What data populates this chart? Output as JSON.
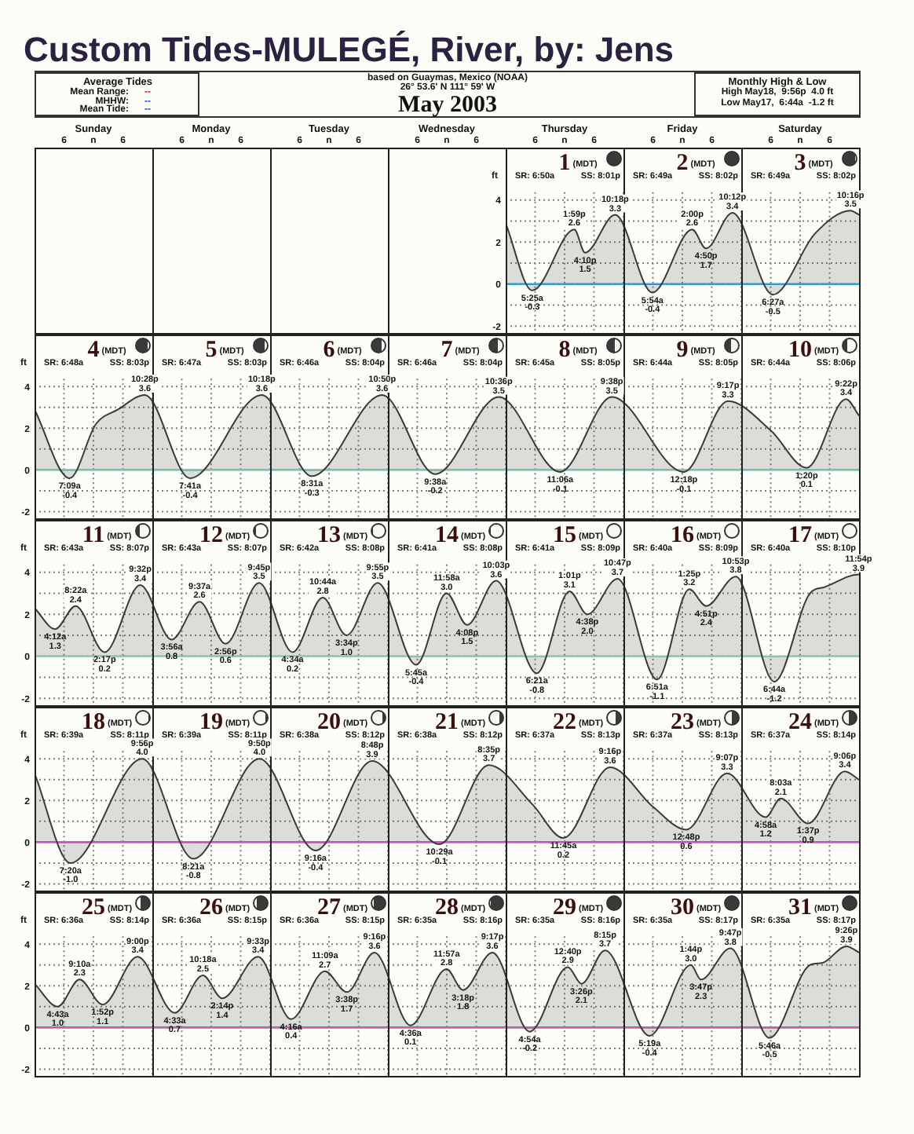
{
  "chart_data": [
    {
      "type": "other",
      "title": "Custom Tides-MULEGÉ, River, by: Jens",
      "subtitle": "May 2003",
      "annotations": [
        "based on Guaymas, Mexico (NOAA)",
        "26° 53.6' N 111° 59' W",
        "Average Tides",
        "Mean Range:",
        "--",
        "MHHW:",
        "--",
        "Mean Tide:",
        "--",
        "Monthly High & Low",
        "High May18,  9:56p  4.0 ft",
        "Low May17,  6:44a  -1.2 ft",
        "Sunday",
        "Monday",
        "Tuesday",
        "Wednesday",
        "Thursday",
        "Friday",
        "Saturday",
        "6",
        "n",
        "6",
        "6",
        "n",
        "6",
        "6",
        "n",
        "6",
        "6",
        "n",
        "6",
        "6",
        "n",
        "6",
        "6",
        "n",
        "6",
        "6",
        "n",
        "6"
      ]
    },
    {
      "type": "area",
      "ylabel": "ft",
      "grid": true,
      "xlim": [
        "2003-05-01T00:00",
        "2003-05-04T00:00"
      ],
      "ylim": [
        -2.4,
        6.5
      ],
      "yticks": [
        -2,
        {
          "value": -1,
          "label": null
        },
        0,
        {
          "value": 1,
          "label": null
        },
        2,
        {
          "value": 3,
          "label": null
        },
        4
      ],
      "xticks": [
        {
          "value": "2003-05-01T06:00",
          "label": null
        },
        {
          "value": "2003-05-01T12:00",
          "label": "1"
        },
        {
          "value": "2003-05-01T18:00",
          "label": null
        },
        {
          "value": "2003-05-02T00:00",
          "label": null
        },
        {
          "value": "2003-05-02T06:00",
          "label": null
        },
        {
          "value": "2003-05-02T12:00",
          "label": "2"
        },
        {
          "value": "2003-05-02T18:00",
          "label": null
        },
        {
          "value": "2003-05-03T00:00",
          "label": null
        },
        {
          "value": "2003-05-03T06:00",
          "label": null
        },
        {
          "value": "2003-05-03T12:00",
          "label": "3"
        },
        {
          "value": "2003-05-03T18:00",
          "label": null
        }
      ],
      "x": [
        "2003-05-01T00:00",
        "2003-05-01T05:25",
        "2003-05-01T13:59",
        "2003-05-01T16:10",
        "2003-05-01T22:18",
        "2003-05-02T05:54",
        "2003-05-02T14:00",
        "2003-05-02T16:50",
        "2003-05-02T22:12",
        "2003-05-03T06:27",
        "2003-05-03T15:00",
        "2003-05-03T22:16",
        "2003-05-04T00:00"
      ],
      "series": [
        {
          "color": "#3a3a3a",
          "values": [
            2.9,
            -0.3,
            2.6,
            1.5,
            3.3,
            -0.4,
            2.6,
            1.7,
            3.4,
            -0.5,
            2.4,
            3.5,
            3.3
          ],
          "value_labels": [
            null,
            "5:25a\n-0.3",
            "1:59p\n2.6",
            "4:10p\n1.5",
            "10:18p\n3.3",
            "5:54a\n-0.4",
            "2:00p\n2.6",
            "4:50p\n1.7",
            "10:12p\n3.4",
            "6:27a\n-0.5",
            null,
            "10:16p\n3.5",
            null
          ]
        }
      ],
      "ref_lines": [
        {
          "axis": "y",
          "value": 0,
          "color": "#3ba4d9"
        }
      ],
      "annotations": [
        "(MDT)",
        "SR: 6:50a",
        "SS: 8:01p",
        "(MDT)",
        "SR: 6:49a",
        "SS: 8:02p",
        "(MDT)",
        "SR: 6:49a",
        "SS: 8:02p"
      ]
    },
    {
      "type": "area",
      "ylabel": "ft",
      "grid": true,
      "xlim": [
        "2003-05-04T00:00",
        "2003-05-11T00:00"
      ],
      "ylim": [
        -2.4,
        6.5
      ],
      "yticks": [
        -2,
        {
          "value": -1,
          "label": null
        },
        0,
        {
          "value": 1,
          "label": null
        },
        2,
        {
          "value": 3,
          "label": null
        },
        4
      ],
      "xticks": [
        {
          "value": "2003-05-04T06:00",
          "label": null
        },
        {
          "value": "2003-05-04T12:00",
          "label": "4"
        },
        {
          "value": "2003-05-04T18:00",
          "label": null
        },
        {
          "value": "2003-05-05T00:00",
          "label": null
        },
        {
          "value": "2003-05-05T06:00",
          "label": null
        },
        {
          "value": "2003-05-05T12:00",
          "label": "5"
        },
        {
          "value": "2003-05-05T18:00",
          "label": null
        },
        {
          "value": "2003-05-06T00:00",
          "label": null
        },
        {
          "value": "2003-05-06T06:00",
          "label": null
        },
        {
          "value": "2003-05-06T12:00",
          "label": "6"
        },
        {
          "value": "2003-05-06T18:00",
          "label": null
        },
        {
          "value": "2003-05-07T00:00",
          "label": null
        },
        {
          "value": "2003-05-07T06:00",
          "label": null
        },
        {
          "value": "2003-05-07T12:00",
          "label": "7"
        },
        {
          "value": "2003-05-07T18:00",
          "label": null
        },
        {
          "value": "2003-05-08T00:00",
          "label": null
        },
        {
          "value": "2003-05-08T06:00",
          "label": null
        },
        {
          "value": "2003-05-08T12:00",
          "label": "8"
        },
        {
          "value": "2003-05-08T18:00",
          "label": null
        },
        {
          "value": "2003-05-09T00:00",
          "label": null
        },
        {
          "value": "2003-05-09T06:00",
          "label": null
        },
        {
          "value": "2003-05-09T12:00",
          "label": "9"
        },
        {
          "value": "2003-05-09T18:00",
          "label": null
        },
        {
          "value": "2003-05-10T00:00",
          "label": null
        },
        {
          "value": "2003-05-10T06:00",
          "label": null
        },
        {
          "value": "2003-05-10T12:00",
          "label": "10"
        },
        {
          "value": "2003-05-10T18:00",
          "label": null
        }
      ],
      "x": [
        "2003-05-04T00:00",
        "2003-05-04T07:09",
        "2003-05-04T12:30",
        "2003-05-04T17:00",
        "2003-05-04T22:28",
        "2003-05-05T07:41",
        "2003-05-05T22:18",
        "2003-05-06T08:31",
        "2003-05-06T22:50",
        "2003-05-07T09:38",
        "2003-05-07T22:36",
        "2003-05-08T11:06",
        "2003-05-08T21:38",
        "2003-05-09T12:18",
        "2003-05-09T21:17",
        "2003-05-10T06:00",
        "2003-05-10T13:20",
        "2003-05-10T21:22",
        "2003-05-11T00:00"
      ],
      "series": [
        {
          "color": "#3a3a3a",
          "values": [
            2.9,
            -0.4,
            2.2,
            2.9,
            3.6,
            -0.4,
            3.6,
            -0.3,
            3.6,
            -0.2,
            3.5,
            -0.1,
            3.5,
            -0.1,
            3.3,
            1.9,
            0.1,
            3.4,
            2.6
          ],
          "value_labels": [
            null,
            "7:09a\n-0.4",
            null,
            null,
            "10:28p\n3.6",
            "7:41a\n-0.4",
            "10:18p\n3.6",
            "8:31a\n-0.3",
            "10:50p\n3.6",
            "9:38a\n-0.2",
            "10:36p\n3.5",
            "11:06a\n-0.1",
            "9:38p\n3.5",
            "12:18p\n-0.1",
            "9:17p\n3.3",
            null,
            "1:20p\n0.1",
            "9:22p\n3.4",
            null
          ]
        }
      ],
      "ref_lines": [
        {
          "axis": "y",
          "value": 0,
          "color": "#7fcfc4"
        }
      ],
      "annotations": [
        "(MDT)",
        "SR: 6:48a",
        "SS: 8:03p",
        "(MDT)",
        "SR: 6:47a",
        "SS: 8:03p",
        "(MDT)",
        "SR: 6:46a",
        "SS: 8:04p",
        "(MDT)",
        "SR: 6:46a",
        "SS: 8:04p",
        "(MDT)",
        "SR: 6:45a",
        "SS: 8:05p",
        "(MDT)",
        "SR: 6:44a",
        "SS: 8:05p",
        "(MDT)",
        "SR: 6:44a",
        "SS: 8:06p"
      ]
    },
    {
      "type": "area",
      "ylabel": "ft",
      "grid": true,
      "xlim": [
        "2003-05-11T00:00",
        "2003-05-18T00:00"
      ],
      "ylim": [
        -2.4,
        6.5
      ],
      "yticks": [
        -2,
        {
          "value": -1,
          "label": null
        },
        0,
        {
          "value": 1,
          "label": null
        },
        2,
        {
          "value": 3,
          "label": null
        },
        4
      ],
      "xticks": [
        {
          "value": "2003-05-11T06:00",
          "label": null
        },
        {
          "value": "2003-05-11T12:00",
          "label": "11"
        },
        {
          "value": "2003-05-11T18:00",
          "label": null
        },
        {
          "value": "2003-05-12T00:00",
          "label": null
        },
        {
          "value": "2003-05-12T06:00",
          "label": null
        },
        {
          "value": "2003-05-12T12:00",
          "label": "12"
        },
        {
          "value": "2003-05-12T18:00",
          "label": null
        },
        {
          "value": "2003-05-13T00:00",
          "label": null
        },
        {
          "value": "2003-05-13T06:00",
          "label": null
        },
        {
          "value": "2003-05-13T12:00",
          "label": "13"
        },
        {
          "value": "2003-05-13T18:00",
          "label": null
        },
        {
          "value": "2003-05-14T00:00",
          "label": null
        },
        {
          "value": "2003-05-14T06:00",
          "label": null
        },
        {
          "value": "2003-05-14T12:00",
          "label": "14"
        },
        {
          "value": "2003-05-14T18:00",
          "label": null
        },
        {
          "value": "2003-05-15T00:00",
          "label": null
        },
        {
          "value": "2003-05-15T06:00",
          "label": null
        },
        {
          "value": "2003-05-15T12:00",
          "label": "15"
        },
        {
          "value": "2003-05-15T18:00",
          "label": null
        },
        {
          "value": "2003-05-16T00:00",
          "label": null
        },
        {
          "value": "2003-05-16T06:00",
          "label": null
        },
        {
          "value": "2003-05-16T12:00",
          "label": "16"
        },
        {
          "value": "2003-05-16T18:00",
          "label": null
        },
        {
          "value": "2003-05-17T00:00",
          "label": null
        },
        {
          "value": "2003-05-17T06:00",
          "label": null
        },
        {
          "value": "2003-05-17T12:00",
          "label": "17"
        },
        {
          "value": "2003-05-17T18:00",
          "label": null
        }
      ],
      "x": [
        "2003-05-11T00:00",
        "2003-05-11T04:12",
        "2003-05-11T08:22",
        "2003-05-11T14:17",
        "2003-05-11T21:32",
        "2003-05-12T03:56",
        "2003-05-12T09:37",
        "2003-05-12T14:56",
        "2003-05-12T21:45",
        "2003-05-13T04:34",
        "2003-05-13T10:44",
        "2003-05-13T15:34",
        "2003-05-13T21:55",
        "2003-05-14T05:45",
        "2003-05-14T11:58",
        "2003-05-14T16:08",
        "2003-05-14T22:03",
        "2003-05-15T06:21",
        "2003-05-15T13:01",
        "2003-05-15T16:38",
        "2003-05-15T22:47",
        "2003-05-16T06:51",
        "2003-05-16T13:25",
        "2003-05-16T16:51",
        "2003-05-16T22:53",
        "2003-05-17T06:44",
        "2003-05-17T14:00",
        "2003-05-17T17:00",
        "2003-05-17T23:54",
        "2003-05-18T00:00"
      ],
      "series": [
        {
          "color": "#3a3a3a",
          "values": [
            2.3,
            1.3,
            2.4,
            0.2,
            3.4,
            0.8,
            2.6,
            0.6,
            3.5,
            0.2,
            2.8,
            1.0,
            3.5,
            -0.4,
            3.0,
            1.5,
            3.6,
            -0.8,
            3.1,
            2.0,
            3.7,
            -1.1,
            3.2,
            2.4,
            3.8,
            -1.2,
            3.0,
            3.3,
            3.9,
            3.9
          ],
          "value_labels": [
            null,
            "4:12a\n1.3",
            "8:22a\n2.4",
            "2:17p\n0.2",
            "9:32p\n3.4",
            "3:56a\n0.8",
            "9:37a\n2.6",
            "2:56p\n0.6",
            "9:45p\n3.5",
            "4:34a\n0.2",
            "10:44a\n2.8",
            "3:34p\n1.0",
            "9:55p\n3.5",
            "5:45a\n-0.4",
            "11:58a\n3.0",
            "4:08p\n1.5",
            "10:03p\n3.6",
            "6:21a\n-0.8",
            "1:01p\n3.1",
            "4:38p\n2.0",
            "10:47p\n3.7",
            "6:51a\n-1.1",
            "1:25p\n3.2",
            "4:51p\n2.4",
            "10:53p\n3.8",
            "6:44a\n-1.2",
            null,
            null,
            "11:54p\n3.9",
            null
          ]
        }
      ],
      "ref_lines": [
        {
          "axis": "y",
          "value": 0,
          "color": "#9cd0bf"
        }
      ],
      "annotations": [
        "(MDT)",
        "SR: 6:43a",
        "SS: 8:07p",
        "(MDT)",
        "SR: 6:43a",
        "SS: 8:07p",
        "(MDT)",
        "SR: 6:42a",
        "SS: 8:08p",
        "(MDT)",
        "SR: 6:41a",
        "SS: 8:08p",
        "(MDT)",
        "SR: 6:41a",
        "SS: 8:09p",
        "(MDT)",
        "SR: 6:40a",
        "SS: 8:09p",
        "(MDT)",
        "SR: 6:40a",
        "SS: 8:10p"
      ]
    },
    {
      "type": "area",
      "ylabel": "ft",
      "grid": true,
      "xlim": [
        "2003-05-18T00:00",
        "2003-05-25T00:00"
      ],
      "ylim": [
        -2.4,
        6.5
      ],
      "yticks": [
        -2,
        {
          "value": -1,
          "label": null
        },
        0,
        {
          "value": 1,
          "label": null
        },
        2,
        {
          "value": 3,
          "label": null
        },
        4
      ],
      "xticks": [
        {
          "value": "2003-05-18T06:00",
          "label": null
        },
        {
          "value": "2003-05-18T12:00",
          "label": "18"
        },
        {
          "value": "2003-05-18T18:00",
          "label": null
        },
        {
          "value": "2003-05-19T00:00",
          "label": null
        },
        {
          "value": "2003-05-19T06:00",
          "label": null
        },
        {
          "value": "2003-05-19T12:00",
          "label": "19"
        },
        {
          "value": "2003-05-19T18:00",
          "label": null
        },
        {
          "value": "2003-05-20T00:00",
          "label": null
        },
        {
          "value": "2003-05-20T06:00",
          "label": null
        },
        {
          "value": "2003-05-20T12:00",
          "label": "20"
        },
        {
          "value": "2003-05-20T18:00",
          "label": null
        },
        {
          "value": "2003-05-21T00:00",
          "label": null
        },
        {
          "value": "2003-05-21T06:00",
          "label": null
        },
        {
          "value": "2003-05-21T12:00",
          "label": "21"
        },
        {
          "value": "2003-05-21T18:00",
          "label": null
        },
        {
          "value": "2003-05-22T00:00",
          "label": null
        },
        {
          "value": "2003-05-22T06:00",
          "label": null
        },
        {
          "value": "2003-05-22T12:00",
          "label": "22"
        },
        {
          "value": "2003-05-22T18:00",
          "label": null
        },
        {
          "value": "2003-05-23T00:00",
          "label": null
        },
        {
          "value": "2003-05-23T06:00",
          "label": null
        },
        {
          "value": "2003-05-23T12:00",
          "label": "23"
        },
        {
          "value": "2003-05-23T18:00",
          "label": null
        },
        {
          "value": "2003-05-24T00:00",
          "label": null
        },
        {
          "value": "2003-05-24T06:00",
          "label": null
        },
        {
          "value": "2003-05-24T12:00",
          "label": "24"
        },
        {
          "value": "2003-05-24T18:00",
          "label": null
        }
      ],
      "x": [
        "2003-05-18T00:00",
        "2003-05-18T07:20",
        "2003-05-18T21:56",
        "2003-05-19T08:21",
        "2003-05-19T21:50",
        "2003-05-20T09:16",
        "2003-05-20T20:48",
        "2003-05-21T10:29",
        "2003-05-21T20:35",
        "2003-05-22T05:30",
        "2003-05-22T11:45",
        "2003-05-22T21:16",
        "2003-05-23T06:00",
        "2003-05-23T12:48",
        "2003-05-23T21:07",
        "2003-05-24T04:58",
        "2003-05-24T08:03",
        "2003-05-24T13:37",
        "2003-05-24T21:06",
        "2003-05-25T00:00"
      ],
      "series": [
        {
          "color": "#3a3a3a",
          "values": [
            3.3,
            -1.0,
            4.0,
            -0.8,
            4.0,
            -0.4,
            3.9,
            -0.1,
            3.7,
            1.8,
            0.2,
            3.6,
            1.7,
            0.6,
            3.3,
            1.2,
            2.1,
            0.9,
            3.4,
            3.0
          ],
          "value_labels": [
            null,
            "7:20a\n-1.0",
            "9:56p\n4.0",
            "8:21a\n-0.8",
            "9:50p\n4.0",
            "9:16a\n-0.4",
            "8:48p\n3.9",
            "10:29a\n-0.1",
            "8:35p\n3.7",
            null,
            "11:45a\n0.2",
            "9:16p\n3.6",
            null,
            "12:48p\n0.6",
            "9:07p\n3.3",
            "4:58a\n1.2",
            "8:03a\n2.1",
            "1:37p\n0.9",
            "9:06p\n3.4",
            null
          ]
        }
      ],
      "ref_lines": [
        {
          "axis": "y",
          "value": 0,
          "color": "#d657c9"
        }
      ],
      "annotations": [
        "(MDT)",
        "SR: 6:39a",
        "SS: 8:11p",
        "(MDT)",
        "SR: 6:39a",
        "SS: 8:11p",
        "(MDT)",
        "SR: 6:38a",
        "SS: 8:12p",
        "(MDT)",
        "SR: 6:38a",
        "SS: 8:12p",
        "(MDT)",
        "SR: 6:37a",
        "SS: 8:13p",
        "(MDT)",
        "SR: 6:37a",
        "SS: 8:13p",
        "(MDT)",
        "SR: 6:37a",
        "SS: 8:14p"
      ]
    },
    {
      "type": "area",
      "ylabel": "ft",
      "grid": true,
      "xlim": [
        "2003-05-25T00:00",
        "2003-06-01T00:00"
      ],
      "ylim": [
        -2.4,
        6.5
      ],
      "yticks": [
        -2,
        {
          "value": -1,
          "label": null
        },
        0,
        {
          "value": 1,
          "label": null
        },
        2,
        {
          "value": 3,
          "label": null
        },
        4
      ],
      "xticks": [
        {
          "value": "2003-05-25T06:00",
          "label": null
        },
        {
          "value": "2003-05-25T12:00",
          "label": "25"
        },
        {
          "value": "2003-05-25T18:00",
          "label": null
        },
        {
          "value": "2003-05-26T00:00",
          "label": null
        },
        {
          "value": "2003-05-26T06:00",
          "label": null
        },
        {
          "value": "2003-05-26T12:00",
          "label": "26"
        },
        {
          "value": "2003-05-26T18:00",
          "label": null
        },
        {
          "value": "2003-05-27T00:00",
          "label": null
        },
        {
          "value": "2003-05-27T06:00",
          "label": null
        },
        {
          "value": "2003-05-27T12:00",
          "label": "27"
        },
        {
          "value": "2003-05-27T18:00",
          "label": null
        },
        {
          "value": "2003-05-28T00:00",
          "label": null
        },
        {
          "value": "2003-05-28T06:00",
          "label": null
        },
        {
          "value": "2003-05-28T12:00",
          "label": "28"
        },
        {
          "value": "2003-05-28T18:00",
          "label": null
        },
        {
          "value": "2003-05-29T00:00",
          "label": null
        },
        {
          "value": "2003-05-29T06:00",
          "label": null
        },
        {
          "value": "2003-05-29T12:00",
          "label": "29"
        },
        {
          "value": "2003-05-29T18:00",
          "label": null
        },
        {
          "value": "2003-05-30T00:00",
          "label": null
        },
        {
          "value": "2003-05-30T06:00",
          "label": null
        },
        {
          "value": "2003-05-30T12:00",
          "label": "30"
        },
        {
          "value": "2003-05-30T18:00",
          "label": null
        },
        {
          "value": "2003-05-31T00:00",
          "label": null
        },
        {
          "value": "2003-05-31T06:00",
          "label": null
        },
        {
          "value": "2003-05-31T12:00",
          "label": "31"
        },
        {
          "value": "2003-05-31T18:00",
          "label": null
        }
      ],
      "x": [
        "2003-05-25T00:00",
        "2003-05-25T04:43",
        "2003-05-25T09:10",
        "2003-05-25T13:52",
        "2003-05-25T21:00",
        "2003-05-26T04:33",
        "2003-05-26T10:18",
        "2003-05-26T14:14",
        "2003-05-26T21:33",
        "2003-05-27T04:16",
        "2003-05-27T11:09",
        "2003-05-27T15:38",
        "2003-05-27T21:16",
        "2003-05-28T04:36",
        "2003-05-28T11:57",
        "2003-05-28T15:18",
        "2003-05-28T21:17",
        "2003-05-29T04:54",
        "2003-05-29T12:40",
        "2003-05-29T15:26",
        "2003-05-29T20:15",
        "2003-05-30T05:19",
        "2003-05-30T13:44",
        "2003-05-30T15:47",
        "2003-05-30T21:47",
        "2003-05-31T05:46",
        "2003-05-31T14:00",
        "2003-05-31T16:30",
        "2003-05-31T21:26",
        "2003-06-01T00:00"
      ],
      "series": [
        {
          "color": "#3a3a3a",
          "values": [
            2.1,
            1.0,
            2.3,
            1.1,
            3.4,
            0.7,
            2.5,
            1.4,
            3.4,
            0.4,
            2.7,
            1.7,
            3.6,
            0.1,
            2.8,
            1.8,
            3.6,
            -0.2,
            2.9,
            2.1,
            3.7,
            -0.4,
            3.0,
            2.3,
            3.8,
            -0.5,
            3.0,
            3.1,
            3.9,
            3.6
          ],
          "value_labels": [
            null,
            "4:43a\n1.0",
            "9:10a\n2.3",
            "1:52p\n1.1",
            "9:00p\n3.4",
            "4:33a\n0.7",
            "10:18a\n2.5",
            "2:14p\n1.4",
            "9:33p\n3.4",
            "4:16a\n0.4",
            "11:09a\n2.7",
            "3:38p\n1.7",
            "9:16p\n3.6",
            "4:36a\n0.1",
            "11:57a\n2.8",
            "3:18p\n1.8",
            "9:17p\n3.6",
            "4:54a\n-0.2",
            "12:40p\n2.9",
            "3:26p\n2.1",
            "8:15p\n3.7",
            "5:19a\n-0.4",
            "1:44p\n3.0",
            "3:47p\n2.3",
            "9:47p\n3.8",
            "5:46a\n-0.5",
            null,
            null,
            "9:26p\n3.9",
            null
          ]
        }
      ],
      "ref_lines": [
        {
          "axis": "y",
          "value": 0,
          "color": "#cf62b6"
        }
      ],
      "annotations": [
        "(MDT)",
        "SR: 6:36a",
        "SS: 8:14p",
        "(MDT)",
        "SR: 6:36a",
        "SS: 8:15p",
        "(MDT)",
        "SR: 6:36a",
        "SS: 8:15p",
        "(MDT)",
        "SR: 6:35a",
        "SS: 8:16p",
        "(MDT)",
        "SR: 6:35a",
        "SS: 8:16p",
        "(MDT)",
        "SR: 6:35a",
        "SS: 8:17p",
        "(MDT)",
        "SR: 6:35a",
        "SS: 8:17p"
      ]
    }
  ]
}
